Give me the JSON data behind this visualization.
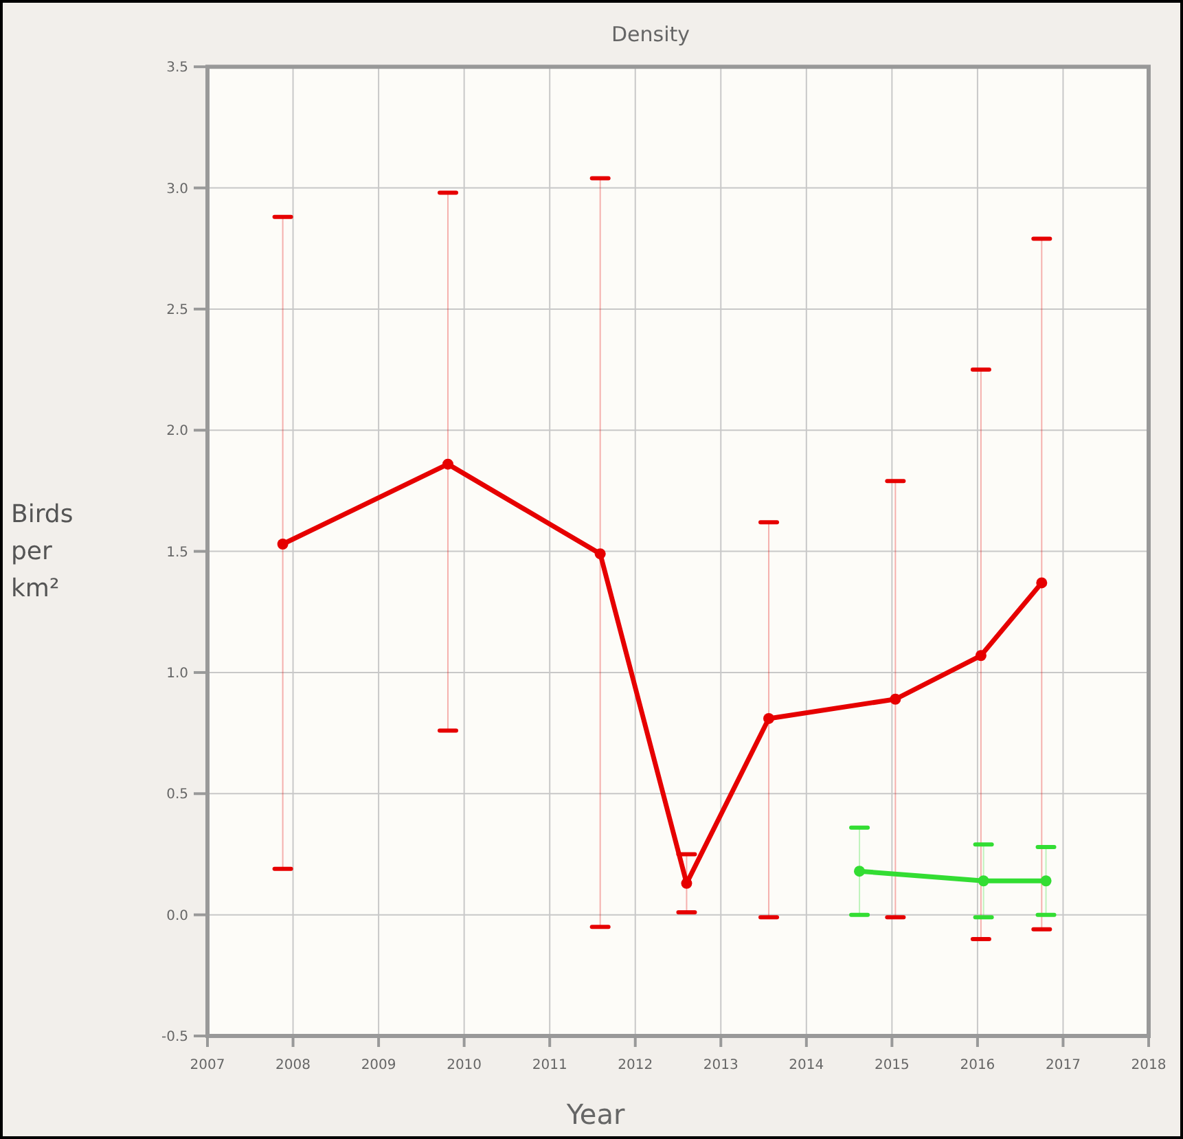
{
  "chart_data": {
    "type": "line",
    "title": "Density",
    "xlabel": "Year",
    "ylabel": "Birds per km²",
    "xlim": [
      2007,
      2018
    ],
    "xticks": [
      2007,
      2008,
      2009,
      2010,
      2011,
      2012,
      2013,
      2014,
      2015,
      2016,
      2017,
      2018
    ],
    "ylim": [
      -0.5,
      3.5
    ],
    "yticks": [
      {
        "value": -0.5,
        "label": "-0.5"
      },
      {
        "value": 0,
        "label": "0.0"
      },
      {
        "value": 0.5,
        "label": "0.5"
      },
      {
        "value": 1,
        "label": "1.0"
      },
      {
        "value": 1.5,
        "label": "1.5"
      },
      {
        "value": 2,
        "label": "2.0"
      },
      {
        "value": 2.5,
        "label": "2.5"
      },
      {
        "value": 3,
        "label": "3.0"
      },
      {
        "value": 3.5,
        "label": "3.5"
      }
    ],
    "grid": true,
    "marker": "circle",
    "line_style": "solid",
    "series": [
      {
        "color": "#e60000",
        "x": [
          2007.88,
          2009.81,
          2011.59,
          2012.6,
          2013.56,
          2015.04,
          2016.04,
          2016.75
        ],
        "values": [
          1.53,
          1.86,
          1.49,
          0.13,
          0.81,
          0.89,
          1.07,
          1.37
        ],
        "errors": [
          [
            0.19,
            2.88
          ],
          [
            0.76,
            2.98
          ],
          [
            -0.05,
            3.04
          ],
          [
            0.01,
            0.25
          ],
          [
            -0.01,
            1.62
          ],
          [
            -0.01,
            1.79
          ],
          [
            -0.1,
            2.25
          ],
          [
            -0.06,
            2.79
          ]
        ]
      },
      {
        "color": "#33dd33",
        "x": [
          2014.62,
          2016.07,
          2016.8
        ],
        "values": [
          0.18,
          0.14,
          0.14
        ],
        "errors": [
          [
            0.0,
            0.36
          ],
          [
            -0.01,
            0.29
          ],
          [
            0.0,
            0.28
          ]
        ]
      }
    ]
  }
}
